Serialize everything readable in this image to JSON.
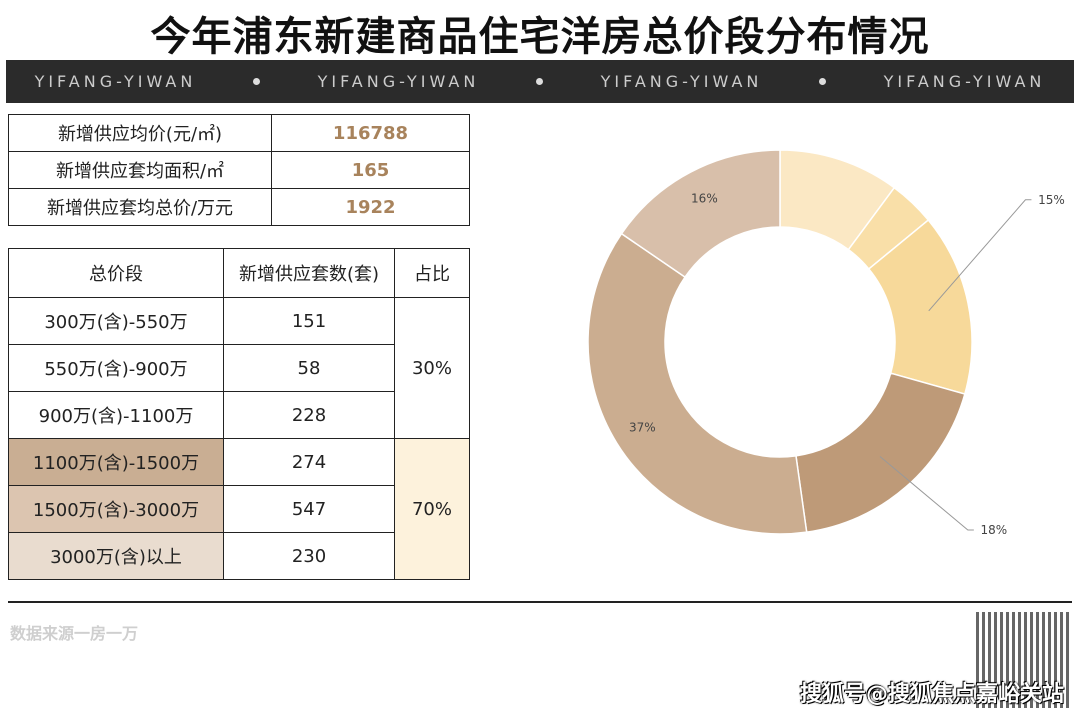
{
  "title": "今年浦东新建商品住宅洋房总价段分布情况",
  "banner": {
    "text": "YIFANG-YIWAN"
  },
  "summary": [
    {
      "label": "新增供应均价(元/㎡)",
      "value": "116788"
    },
    {
      "label": "新增供应套均面积/㎡",
      "value": "165"
    },
    {
      "label": "新增供应套均总价/万元",
      "value": "1922"
    }
  ],
  "table": {
    "headers": [
      "总价段",
      "新增供应套数(套)",
      "占比"
    ],
    "rows": [
      {
        "range": "300万(含)-550万",
        "count": "151"
      },
      {
        "range": "550万(含)-900万",
        "count": "58"
      },
      {
        "range": "900万(含)-1100万",
        "count": "228"
      },
      {
        "range": "1100万(含)-1500万",
        "count": "274"
      },
      {
        "range": "1500万(含)-3000万",
        "count": "547"
      },
      {
        "range": "3000万(含)以上",
        "count": "230"
      }
    ],
    "share_low": "30%",
    "share_high": "70%"
  },
  "footer": {
    "source": "数据来源一房一万",
    "watermark": "搜狐号@搜狐焦点嘉峪关站"
  },
  "chart_data": {
    "type": "pie",
    "donut": true,
    "categories": [
      "300万(含)-550万",
      "550万(含)-900万",
      "900万(含)-1100万",
      "1100万(含)-1500万",
      "1500万(含)-3000万",
      "3000万(含)以上"
    ],
    "values": [
      151,
      58,
      228,
      274,
      547,
      230
    ],
    "labels": [
      "",
      "",
      "15%",
      "18%",
      "37%",
      "16%"
    ],
    "colors": [
      "#fbe8c4",
      "#f9dfa8",
      "#f7d99a",
      "#be9a78",
      "#cbad90",
      "#d8bfaa"
    ]
  }
}
